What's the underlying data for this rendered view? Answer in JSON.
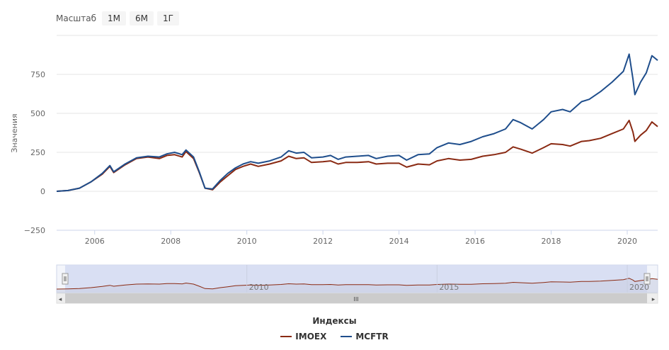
{
  "zoom": {
    "label": "Масштаб",
    "buttons": [
      "1М",
      "6М",
      "1Г"
    ]
  },
  "navigator": {
    "ticks": [
      "2010",
      "2015",
      "2020"
    ],
    "scroll_grip": "III"
  },
  "legend": {
    "title": "Индексы"
  },
  "colors": {
    "IMOEX": "#8a2a13",
    "MCFTR": "#1f4e8c",
    "navigator_fill": "#dfe5f5",
    "navigator_selection": "#d3dbf1"
  },
  "chart_data": {
    "type": "line",
    "ylabel": "Значения",
    "xlabel": "",
    "xlim": [
      2005.0,
      2020.8
    ],
    "ylim": [
      -250,
      1000
    ],
    "yticks": [
      -250,
      0,
      250,
      500,
      750
    ],
    "xticks": [
      "2006",
      "2008",
      "2010",
      "2012",
      "2014",
      "2016",
      "2018",
      "2020"
    ],
    "grid": true,
    "legend_position": "bottom",
    "series": [
      {
        "name": "IMOEX",
        "points": [
          [
            2005.0,
            0
          ],
          [
            2005.3,
            5
          ],
          [
            2005.6,
            20
          ],
          [
            2005.9,
            60
          ],
          [
            2006.2,
            110
          ],
          [
            2006.4,
            160
          ],
          [
            2006.5,
            120
          ],
          [
            2006.8,
            170
          ],
          [
            2007.1,
            210
          ],
          [
            2007.4,
            220
          ],
          [
            2007.7,
            210
          ],
          [
            2007.9,
            230
          ],
          [
            2008.1,
            235
          ],
          [
            2008.3,
            220
          ],
          [
            2008.4,
            255
          ],
          [
            2008.6,
            210
          ],
          [
            2008.75,
            120
          ],
          [
            2008.9,
            20
          ],
          [
            2009.1,
            10
          ],
          [
            2009.3,
            60
          ],
          [
            2009.5,
            100
          ],
          [
            2009.7,
            140
          ],
          [
            2009.9,
            160
          ],
          [
            2010.1,
            175
          ],
          [
            2010.3,
            160
          ],
          [
            2010.6,
            175
          ],
          [
            2010.9,
            195
          ],
          [
            2011.1,
            225
          ],
          [
            2011.3,
            210
          ],
          [
            2011.5,
            215
          ],
          [
            2011.7,
            185
          ],
          [
            2012.0,
            190
          ],
          [
            2012.2,
            195
          ],
          [
            2012.4,
            175
          ],
          [
            2012.6,
            185
          ],
          [
            2012.9,
            185
          ],
          [
            2013.2,
            190
          ],
          [
            2013.4,
            175
          ],
          [
            2013.7,
            180
          ],
          [
            2014.0,
            180
          ],
          [
            2014.2,
            155
          ],
          [
            2014.5,
            175
          ],
          [
            2014.8,
            170
          ],
          [
            2015.0,
            195
          ],
          [
            2015.3,
            210
          ],
          [
            2015.6,
            200
          ],
          [
            2015.9,
            205
          ],
          [
            2016.2,
            225
          ],
          [
            2016.5,
            235
          ],
          [
            2016.8,
            250
          ],
          [
            2017.0,
            285
          ],
          [
            2017.2,
            270
          ],
          [
            2017.5,
            245
          ],
          [
            2017.8,
            280
          ],
          [
            2018.0,
            305
          ],
          [
            2018.3,
            300
          ],
          [
            2018.5,
            290
          ],
          [
            2018.8,
            320
          ],
          [
            2019.0,
            325
          ],
          [
            2019.3,
            340
          ],
          [
            2019.6,
            370
          ],
          [
            2019.9,
            400
          ],
          [
            2020.05,
            455
          ],
          [
            2020.15,
            380
          ],
          [
            2020.2,
            320
          ],
          [
            2020.35,
            360
          ],
          [
            2020.5,
            390
          ],
          [
            2020.65,
            445
          ],
          [
            2020.8,
            415
          ]
        ]
      },
      {
        "name": "MCFTR",
        "points": [
          [
            2005.0,
            0
          ],
          [
            2005.3,
            5
          ],
          [
            2005.6,
            20
          ],
          [
            2005.9,
            60
          ],
          [
            2006.2,
            115
          ],
          [
            2006.4,
            165
          ],
          [
            2006.5,
            125
          ],
          [
            2006.8,
            175
          ],
          [
            2007.1,
            215
          ],
          [
            2007.4,
            225
          ],
          [
            2007.7,
            220
          ],
          [
            2007.9,
            240
          ],
          [
            2008.1,
            250
          ],
          [
            2008.3,
            235
          ],
          [
            2008.4,
            265
          ],
          [
            2008.6,
            220
          ],
          [
            2008.75,
            125
          ],
          [
            2008.9,
            20
          ],
          [
            2009.1,
            15
          ],
          [
            2009.3,
            70
          ],
          [
            2009.5,
            115
          ],
          [
            2009.7,
            150
          ],
          [
            2009.9,
            175
          ],
          [
            2010.1,
            190
          ],
          [
            2010.3,
            180
          ],
          [
            2010.6,
            195
          ],
          [
            2010.9,
            220
          ],
          [
            2011.1,
            260
          ],
          [
            2011.3,
            245
          ],
          [
            2011.5,
            250
          ],
          [
            2011.7,
            215
          ],
          [
            2012.0,
            220
          ],
          [
            2012.2,
            230
          ],
          [
            2012.4,
            205
          ],
          [
            2012.6,
            220
          ],
          [
            2012.9,
            225
          ],
          [
            2013.2,
            230
          ],
          [
            2013.4,
            210
          ],
          [
            2013.7,
            225
          ],
          [
            2014.0,
            230
          ],
          [
            2014.2,
            200
          ],
          [
            2014.5,
            235
          ],
          [
            2014.8,
            240
          ],
          [
            2015.0,
            280
          ],
          [
            2015.3,
            310
          ],
          [
            2015.6,
            300
          ],
          [
            2015.9,
            320
          ],
          [
            2016.2,
            350
          ],
          [
            2016.5,
            370
          ],
          [
            2016.8,
            400
          ],
          [
            2017.0,
            460
          ],
          [
            2017.2,
            440
          ],
          [
            2017.5,
            400
          ],
          [
            2017.8,
            460
          ],
          [
            2018.0,
            510
          ],
          [
            2018.3,
            525
          ],
          [
            2018.5,
            510
          ],
          [
            2018.8,
            575
          ],
          [
            2019.0,
            590
          ],
          [
            2019.3,
            640
          ],
          [
            2019.6,
            700
          ],
          [
            2019.9,
            770
          ],
          [
            2020.05,
            880
          ],
          [
            2020.15,
            720
          ],
          [
            2020.2,
            620
          ],
          [
            2020.35,
            700
          ],
          [
            2020.5,
            760
          ],
          [
            2020.65,
            870
          ],
          [
            2020.8,
            840
          ]
        ]
      }
    ]
  }
}
